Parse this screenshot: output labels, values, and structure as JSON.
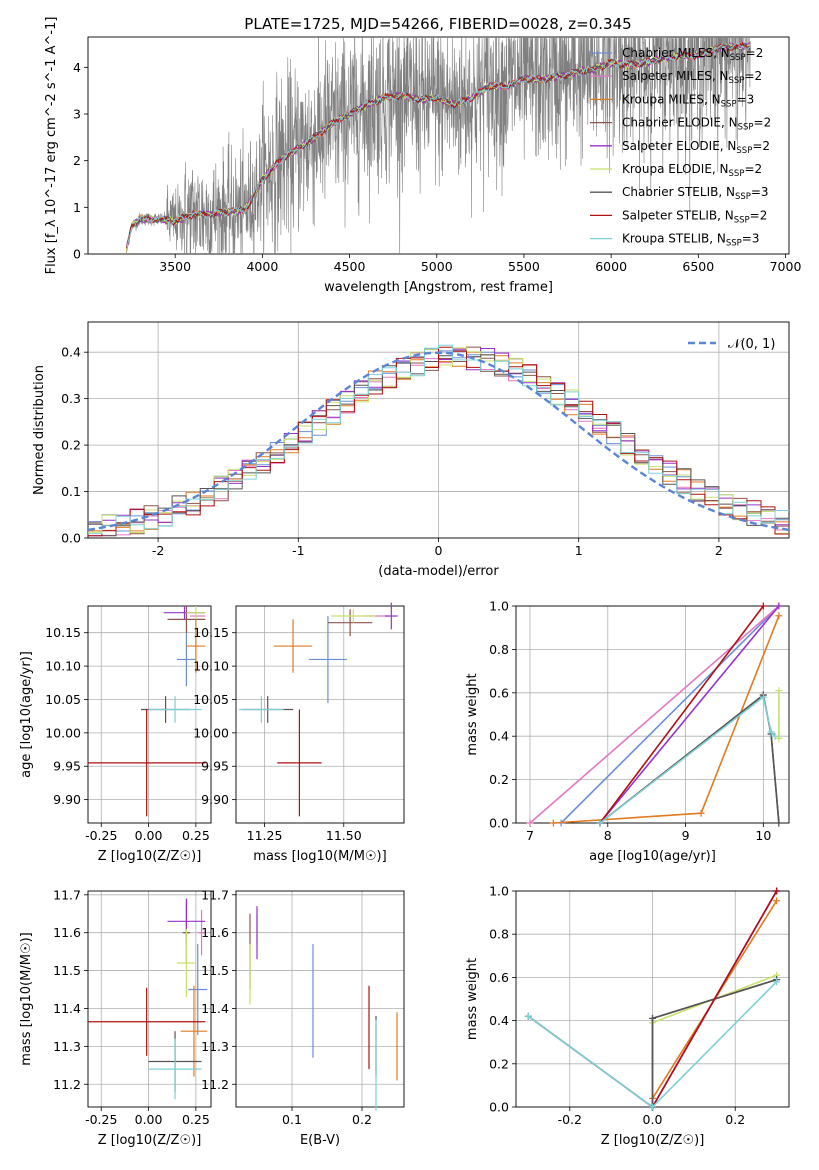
{
  "figure_title": "PLATE=1725, MJD=54266, FIBERID=0028, z=0.345",
  "models": [
    {
      "name": "Chabrier MILES",
      "nssp": "2",
      "color": "#6a8fd6"
    },
    {
      "name": "Salpeter MILES",
      "nssp": "2",
      "color": "#e377c2"
    },
    {
      "name": "Kroupa MILES",
      "nssp": "3",
      "color": "#e07b20"
    },
    {
      "name": "Chabrier ELODIE",
      "nssp": "2",
      "color": "#8c564b"
    },
    {
      "name": "Salpeter ELODIE",
      "nssp": "2",
      "color": "#9932cc"
    },
    {
      "name": "Kroupa ELODIE",
      "nssp": "2",
      "color": "#c7e26b"
    },
    {
      "name": "Chabrier STELIB",
      "nssp": "3",
      "color": "#555555"
    },
    {
      "name": "Salpeter STELIB",
      "nssp": "2",
      "color": "#b01010"
    },
    {
      "name": "Kroupa STELIB",
      "nssp": "3",
      "color": "#7fd0d6"
    }
  ],
  "chart_data": [
    {
      "type": "line",
      "id": "spectrum",
      "xlabel": "wavelength [Angstrom, rest frame]",
      "ylabel": "Flux [f_λ 10^-17 erg cm^-2 s^-1 A^-1]",
      "xlim": [
        3000,
        7020
      ],
      "ylim": [
        0,
        4.65
      ],
      "xticks": [
        3500,
        4000,
        4500,
        5000,
        5500,
        6000,
        6500,
        7000
      ],
      "yticks": [
        0,
        1,
        2,
        3,
        4
      ],
      "data_color": "#808080",
      "model_curve": {
        "x": [
          3220,
          3250,
          3300,
          3400,
          3500,
          3600,
          3700,
          3800,
          3900,
          3950,
          4000,
          4100,
          4200,
          4300,
          4400,
          4500,
          4600,
          4700,
          4800,
          4900,
          5000,
          5100,
          5200,
          5300,
          5400,
          5500,
          5600,
          5700,
          5800,
          5900,
          6000,
          6100,
          6200,
          6300,
          6400,
          6500,
          6600,
          6700,
          6800
        ],
        "y": [
          0.1,
          0.6,
          0.75,
          0.75,
          0.7,
          0.85,
          0.85,
          0.9,
          0.95,
          1.25,
          1.6,
          2.0,
          2.25,
          2.5,
          2.8,
          3.0,
          3.2,
          3.35,
          3.4,
          3.3,
          3.35,
          3.2,
          3.35,
          3.6,
          3.6,
          3.75,
          3.75,
          3.8,
          3.9,
          3.95,
          4.1,
          4.05,
          4.1,
          4.2,
          4.25,
          4.25,
          4.4,
          4.45,
          4.45
        ]
      },
      "data_range": [
        3220,
        6800
      ],
      "legend_loc": "upper right"
    },
    {
      "type": "histogram",
      "id": "residuals",
      "xlabel": "(data-model)/error",
      "ylabel": "Normed distribution",
      "xlim": [
        -2.5,
        2.5
      ],
      "ylim": [
        0,
        0.465
      ],
      "xticks": [
        -2,
        -1,
        0,
        1,
        2
      ],
      "yticks": [
        0.0,
        0.1,
        0.2,
        0.3,
        0.4
      ],
      "bin_width": 0.1,
      "reference_curve": {
        "label": "𝒩(0, 1)",
        "mean": 0,
        "sigma": 1
      },
      "grid": true,
      "legend_loc": "upper right"
    },
    {
      "type": "errorbar",
      "id": "age-vs-Z",
      "xlabel": "Z [log10(Z/Z☉)]",
      "ylabel": "age [log10(age/yr)]",
      "xlim": [
        -0.32,
        0.33
      ],
      "ylim": [
        9.865,
        10.19
      ],
      "xticks": [
        -0.25,
        0.0,
        0.25
      ],
      "yticks": [
        9.9,
        9.95,
        10.0,
        10.05,
        10.1,
        10.15
      ],
      "points": [
        {
          "m": 0,
          "x": 0.2,
          "xerr": 0.05,
          "y": 10.11,
          "yerr": 0.04
        },
        {
          "m": 1,
          "x": 0.26,
          "xerr": 0.04,
          "y": 10.175,
          "yerr": 0.0
        },
        {
          "m": 2,
          "x": 0.25,
          "xerr": 0.05,
          "y": 10.13,
          "yerr": 0.04
        },
        {
          "m": 3,
          "x": 0.2,
          "xerr": 0.1,
          "y": 10.17,
          "yerr": 0.02
        },
        {
          "m": 4,
          "x": 0.19,
          "xerr": 0.11,
          "y": 10.18,
          "yerr": 0.01
        },
        {
          "m": 5,
          "x": 0.25,
          "xerr": 0.05,
          "y": 10.18,
          "yerr": 0.01
        },
        {
          "m": 6,
          "x": 0.09,
          "xerr": 0.13,
          "y": 10.035,
          "yerr": 0.02
        },
        {
          "m": 7,
          "x": -0.01,
          "xerr": 0.31,
          "y": 9.955,
          "yerr": 0.08
        },
        {
          "m": 8,
          "x": 0.14,
          "xerr": 0.14,
          "y": 10.035,
          "yerr": 0.02
        }
      ]
    },
    {
      "type": "errorbar",
      "id": "age-vs-mass",
      "xlabel": "mass [log10(M/M☉)]",
      "ylabel": "",
      "xlim": [
        11.16,
        11.69
      ],
      "ylim": [
        9.865,
        10.19
      ],
      "xticks": [
        11.25,
        11.5
      ],
      "xticklabels": [
        "11.25",
        "11.50"
      ],
      "yticks": [
        9.9,
        9.95,
        10.0,
        10.05,
        10.1,
        10.15
      ],
      "points": [
        {
          "m": 0,
          "x": 11.45,
          "xerr": 0.06,
          "y": 10.11,
          "yerr": 0.065
        },
        {
          "m": 1,
          "x": 11.6,
          "xerr": 0.04,
          "y": 10.175,
          "yerr": 0.0
        },
        {
          "m": 2,
          "x": 11.34,
          "xerr": 0.06,
          "y": 10.13,
          "yerr": 0.04
        },
        {
          "m": 3,
          "x": 11.52,
          "xerr": 0.07,
          "y": 10.165,
          "yerr": 0.02
        },
        {
          "m": 4,
          "x": 11.65,
          "xerr": 0.02,
          "y": 10.175,
          "yerr": 0.02
        },
        {
          "m": 5,
          "x": 11.53,
          "xerr": 0.07,
          "y": 10.175,
          "yerr": 0.01
        },
        {
          "m": 6,
          "x": 11.26,
          "xerr": 0.08,
          "y": 10.035,
          "yerr": 0.02
        },
        {
          "m": 7,
          "x": 11.36,
          "xerr": 0.07,
          "y": 9.955,
          "yerr": 0.08
        },
        {
          "m": 8,
          "x": 11.24,
          "xerr": 0.07,
          "y": 10.035,
          "yerr": 0.02
        }
      ]
    },
    {
      "type": "line",
      "id": "weight-vs-age",
      "xlabel": "age [log10(age/yr)]",
      "ylabel": "mass weight",
      "xlim": [
        6.82,
        10.33
      ],
      "ylim": [
        0,
        1
      ],
      "xticks": [
        7,
        8,
        9,
        10
      ],
      "yticks": [
        0.0,
        0.2,
        0.4,
        0.6,
        0.8,
        1.0
      ],
      "series": [
        {
          "m": 0,
          "x": [
            7.4,
            10.2
          ],
          "y": [
            0,
            1
          ]
        },
        {
          "m": 1,
          "x": [
            7.0,
            10.2
          ],
          "y": [
            0,
            1
          ]
        },
        {
          "m": 2,
          "x": [
            7.3,
            9.2,
            10.2
          ],
          "y": [
            0,
            0.045,
            0.955
          ]
        },
        {
          "m": 3,
          "x": [
            7.9,
            10.0,
            10.1,
            10.2
          ],
          "y": [
            0,
            0.59,
            0.41,
            0.0
          ]
        },
        {
          "m": 4,
          "x": [
            7.9,
            10.2
          ],
          "y": [
            0,
            1
          ]
        },
        {
          "m": 5,
          "x": [
            10.2,
            10.2
          ],
          "y": [
            0.61,
            0.39
          ]
        },
        {
          "m": 6,
          "x": [
            7.9,
            10.0,
            10.1,
            10.2
          ],
          "y": [
            0,
            0.59,
            0.41,
            0.0
          ]
        },
        {
          "m": 7,
          "x": [
            7.9,
            10.0
          ],
          "y": [
            0,
            1
          ]
        },
        {
          "m": 8,
          "x": [
            7.9,
            10.0,
            10.1,
            10.15
          ],
          "y": [
            0,
            0.58,
            0.42,
            0.4
          ]
        }
      ]
    },
    {
      "type": "errorbar",
      "id": "mass-vs-Z",
      "xlabel": "Z [log10(Z/Z☉)]",
      "ylabel": "mass [log10(M/M☉)]",
      "xlim": [
        -0.32,
        0.33
      ],
      "ylim": [
        11.14,
        11.71
      ],
      "xticks": [
        -0.25,
        0.0,
        0.25
      ],
      "yticks": [
        11.2,
        11.3,
        11.4,
        11.5,
        11.6,
        11.7
      ],
      "points": [
        {
          "m": 0,
          "x": 0.26,
          "xerr": 0.05,
          "y": 11.45,
          "yerr": 0.12
        },
        {
          "m": 1,
          "x": 0.28,
          "xerr": 0.02,
          "y": 11.6,
          "yerr": 0.06
        },
        {
          "m": 2,
          "x": 0.24,
          "xerr": 0.07,
          "y": 11.34,
          "yerr": 0.12
        },
        {
          "m": 3,
          "x": 0.2,
          "xerr": 0.02,
          "y": 11.6,
          "yerr": 0.08
        },
        {
          "m": 4,
          "x": 0.2,
          "xerr": 0.1,
          "y": 11.63,
          "yerr": 0.06
        },
        {
          "m": 5,
          "x": 0.2,
          "xerr": 0.05,
          "y": 11.52,
          "yerr": 0.09
        },
        {
          "m": 6,
          "x": 0.14,
          "xerr": 0.14,
          "y": 11.26,
          "yerr": 0.08
        },
        {
          "m": 7,
          "x": -0.01,
          "xerr": 0.31,
          "y": 11.365,
          "yerr": 0.09
        },
        {
          "m": 8,
          "x": 0.14,
          "xerr": 0.14,
          "y": 11.24,
          "yerr": 0.08
        }
      ]
    },
    {
      "type": "errorbar",
      "id": "mass-vs-ebv",
      "xlabel": "E(B-V)",
      "ylabel": "",
      "xlim": [
        0.02,
        0.26
      ],
      "ylim": [
        11.14,
        11.71
      ],
      "xticks": [
        0.1,
        0.2
      ],
      "yticks": [
        11.2,
        11.3,
        11.4,
        11.5,
        11.6,
        11.7
      ],
      "points": [
        {
          "m": 0,
          "x": 0.13,
          "xerr": 0.0,
          "y": 11.42,
          "yerr": 0.15
        },
        {
          "m": 1,
          "x": 0.05,
          "xerr": 0.0,
          "y": 11.61,
          "yerr": 0.04
        },
        {
          "m": 2,
          "x": 0.25,
          "xerr": 0.0,
          "y": 11.3,
          "yerr": 0.09
        },
        {
          "m": 3,
          "x": 0.04,
          "xerr": 0.0,
          "y": 11.55,
          "yerr": 0.1
        },
        {
          "m": 4,
          "x": 0.05,
          "xerr": 0.0,
          "y": 11.6,
          "yerr": 0.07
        },
        {
          "m": 5,
          "x": 0.04,
          "xerr": 0.0,
          "y": 11.49,
          "yerr": 0.08
        },
        {
          "m": 6,
          "x": 0.22,
          "xerr": 0.0,
          "y": 11.3,
          "yerr": 0.08
        },
        {
          "m": 7,
          "x": 0.21,
          "xerr": 0.0,
          "y": 11.35,
          "yerr": 0.11
        },
        {
          "m": 8,
          "x": 0.22,
          "xerr": 0.0,
          "y": 11.25,
          "yerr": 0.12
        }
      ]
    },
    {
      "type": "line",
      "id": "weight-vs-Z",
      "xlabel": "Z [log10(Z/Z☉)]",
      "ylabel": "mass weight",
      "xlim": [
        -0.33,
        0.33
      ],
      "ylim": [
        0,
        1
      ],
      "xticks": [
        -0.2,
        0.0,
        0.2
      ],
      "yticks": [
        0.0,
        0.2,
        0.4,
        0.6,
        0.8,
        1.0
      ],
      "series": [
        {
          "m": 0,
          "x": [
            0.0,
            0.3
          ],
          "y": [
            0,
            1
          ]
        },
        {
          "m": 1,
          "x": [
            0.0,
            0.3
          ],
          "y": [
            0,
            1
          ]
        },
        {
          "m": 2,
          "x": [
            0.0,
            0.0,
            0.3
          ],
          "y": [
            0,
            0.04,
            0.955
          ]
        },
        {
          "m": 3,
          "x": [
            -0.3,
            0.0,
            0.0,
            0.3
          ],
          "y": [
            0.42,
            0.0,
            0.41,
            0.59
          ]
        },
        {
          "m": 4,
          "x": [
            0.0,
            0.3
          ],
          "y": [
            0,
            1
          ]
        },
        {
          "m": 5,
          "x": [
            0.0,
            0.3
          ],
          "y": [
            0.39,
            0.61
          ]
        },
        {
          "m": 6,
          "x": [
            -0.3,
            0.0,
            0.0,
            0.3
          ],
          "y": [
            0.42,
            0.0,
            0.41,
            0.59
          ]
        },
        {
          "m": 7,
          "x": [
            0.0,
            0.3
          ],
          "y": [
            0,
            1
          ]
        },
        {
          "m": 8,
          "x": [
            -0.3,
            0.0,
            0.3
          ],
          "y": [
            0.42,
            0.0,
            0.58
          ]
        }
      ]
    }
  ]
}
